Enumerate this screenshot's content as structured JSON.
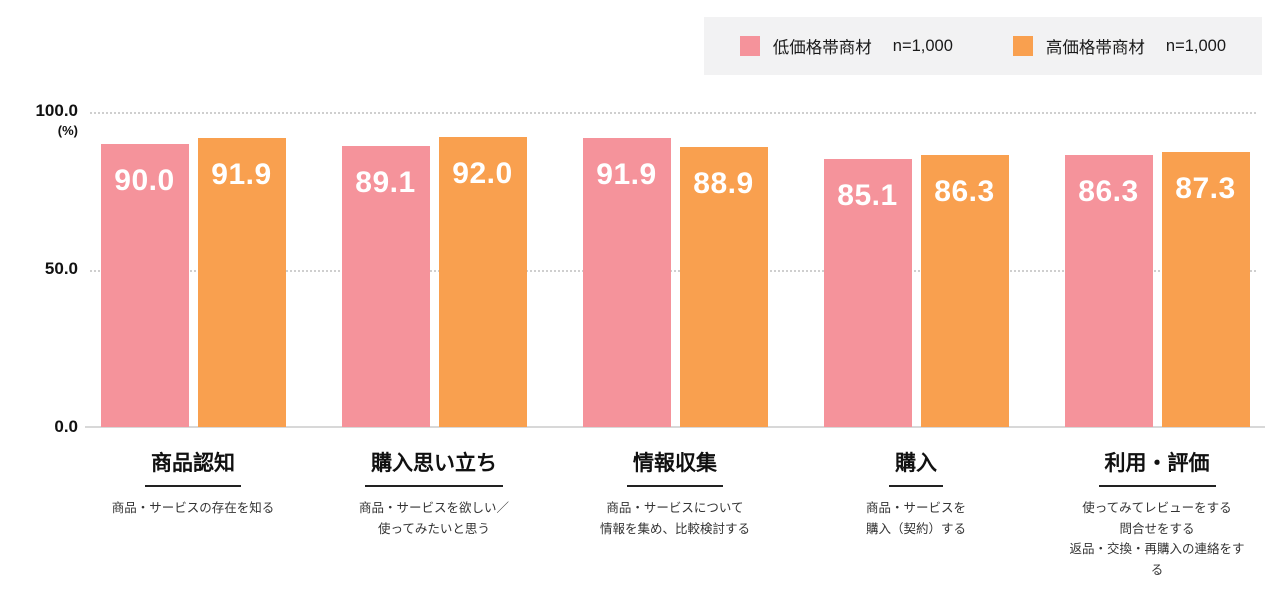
{
  "colors": {
    "low_price": "#F5939B",
    "high_price": "#F9A04F",
    "grid": "#CFCFCF",
    "axis": "#D8D8D8",
    "legend_bg": "#F2F2F3",
    "value_text": "#FFFFFF"
  },
  "legend": {
    "items": [
      {
        "key": "low-price",
        "label": "低価格帯商材",
        "n": "n=1,000",
        "color": "#F5939B"
      },
      {
        "key": "high-price",
        "label": "高価格帯商材",
        "n": "n=1,000",
        "color": "#F9A04F"
      }
    ]
  },
  "y_axis": {
    "top_label": "100.0",
    "unit": "(%)",
    "mid_label": "50.0",
    "bottom_label": "0.0"
  },
  "chart_data": {
    "type": "bar",
    "title": "",
    "categories": [
      "商品認知",
      "購入思い立ち",
      "情報収集",
      "購入",
      "利用・評価"
    ],
    "category_descriptions": [
      [
        "商品・サービスの存在を知る"
      ],
      [
        "商品・サービスを欲しい／",
        "使ってみたいと思う"
      ],
      [
        "商品・サービスについて",
        "情報を集め、比較検討する"
      ],
      [
        "商品・サービスを",
        "購入（契約）する"
      ],
      [
        "使ってみてレビューをする",
        "問合せをする",
        "返品・交換・再購入の連絡をする"
      ]
    ],
    "series": [
      {
        "name": "低価格帯商材 n=1,000",
        "color": "#F5939B",
        "values": [
          90.0,
          89.1,
          91.9,
          85.1,
          86.3
        ]
      },
      {
        "name": "高価格帯商材 n=1,000",
        "color": "#F9A04F",
        "values": [
          91.9,
          92.0,
          88.9,
          86.3,
          87.3
        ]
      }
    ],
    "ylim": [
      0,
      100
    ],
    "grid": {
      "horizontal_dotted_at": [
        50,
        100
      ]
    },
    "legend_position": "top-right",
    "value_label_format": "one-decimal"
  }
}
